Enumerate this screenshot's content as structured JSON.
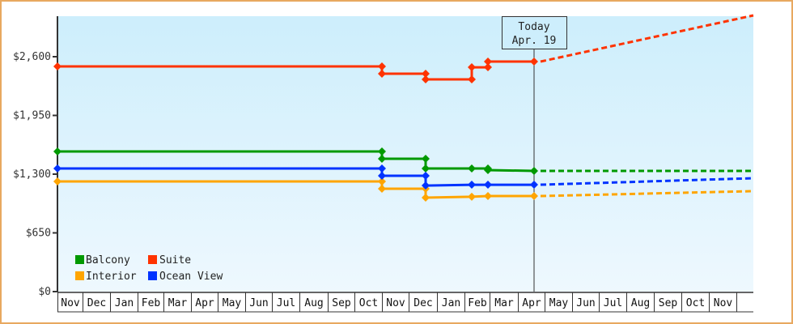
{
  "chart_data": {
    "type": "line",
    "title": "",
    "xlabel": "",
    "ylabel": "",
    "ylim": [
      0,
      3000
    ],
    "y_ticks": [
      "$0",
      "$650",
      "$1,300",
      "$1,950",
      "$2,600"
    ],
    "y_tick_values": [
      0,
      650,
      1300,
      1950,
      2600
    ],
    "x_months": [
      "Nov",
      "Dec",
      "Jan",
      "Feb",
      "Mar",
      "Apr",
      "May",
      "Jun",
      "Jul",
      "Aug",
      "Sep",
      "Oct",
      "Nov",
      "Dec",
      "Jan",
      "Feb",
      "Mar",
      "Apr",
      "May",
      "Jun",
      "Jul",
      "Aug",
      "Sep",
      "Oct",
      "Nov"
    ],
    "today_marker": {
      "line1": "Today",
      "line2": "Apr. 19"
    },
    "legend_position": "lower-left",
    "grid": false,
    "series": [
      {
        "name": "Balcony",
        "color": "#009900",
        "points": [
          [
            "Nov start",
            1551
          ],
          [
            "Nov (yr2) early",
            1551
          ],
          [
            "Nov (yr2) early",
            1470
          ],
          [
            "Dec early",
            1470
          ],
          [
            "Dec early",
            1363
          ],
          [
            "Feb",
            1363
          ],
          [
            "Feb late",
            1363
          ],
          [
            "Feb late",
            1345
          ],
          [
            "Apr 19",
            1336
          ]
        ],
        "projection": [
          [
            "Apr 19",
            1336
          ],
          [
            "end",
            1336
          ]
        ]
      },
      {
        "name": "Suite",
        "color": "#ff3300",
        "points": [
          [
            "Nov start",
            2492
          ],
          [
            "Nov (yr2) early",
            2492
          ],
          [
            "Nov (yr2) early",
            2412
          ],
          [
            "Dec early",
            2412
          ],
          [
            "Dec early",
            2349
          ],
          [
            "Feb",
            2349
          ],
          [
            "Feb",
            2483
          ],
          [
            "Feb late",
            2483
          ],
          [
            "Feb late",
            2546
          ],
          [
            "Apr 19",
            2546
          ]
        ],
        "projection": [
          [
            "Apr 19",
            2546
          ],
          [
            "end",
            3057
          ]
        ]
      },
      {
        "name": "Interior",
        "color": "#ffa500",
        "points": [
          [
            "Nov start",
            1219
          ],
          [
            "Nov (yr2) early",
            1219
          ],
          [
            "Nov (yr2) early",
            1139
          ],
          [
            "Dec early",
            1139
          ],
          [
            "Dec early",
            1040
          ],
          [
            "Feb",
            1050
          ],
          [
            "Feb late",
            1058
          ],
          [
            "Apr 19",
            1058
          ]
        ],
        "projection": [
          [
            "Apr 19",
            1058
          ],
          [
            "end",
            1112
          ]
        ]
      },
      {
        "name": "Ocean View",
        "color": "#0033ff",
        "points": [
          [
            "Nov start",
            1363
          ],
          [
            "Nov (yr2) early",
            1363
          ],
          [
            "Nov (yr2) early",
            1282
          ],
          [
            "Dec early",
            1282
          ],
          [
            "Dec early",
            1174
          ],
          [
            "Feb",
            1183
          ],
          [
            "Feb late",
            1183
          ],
          [
            "Apr 19",
            1183
          ]
        ],
        "projection": [
          [
            "Apr 19",
            1183
          ],
          [
            "end",
            1255
          ]
        ]
      }
    ]
  },
  "legend": {
    "items": [
      {
        "label": "Balcony",
        "color": "#009900"
      },
      {
        "label": "Suite",
        "color": "#ff3300"
      },
      {
        "label": "Interior",
        "color": "#ffa500"
      },
      {
        "label": "Ocean View",
        "color": "#0033ff"
      }
    ]
  }
}
